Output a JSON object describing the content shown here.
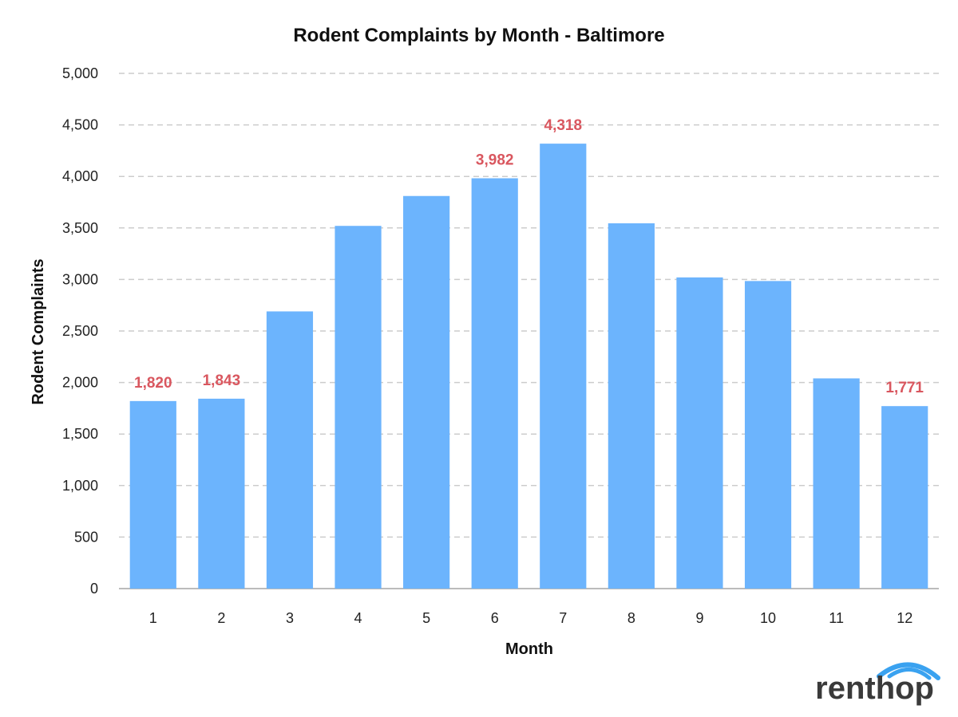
{
  "chart_data": {
    "type": "bar",
    "title": "Rodent Complaints by Month - Baltimore",
    "xlabel": "Month",
    "ylabel": "Rodent Complaints",
    "categories": [
      "1",
      "2",
      "3",
      "4",
      "5",
      "6",
      "7",
      "8",
      "9",
      "10",
      "11",
      "12"
    ],
    "values": [
      1820,
      1843,
      2690,
      3520,
      3810,
      3982,
      4318,
      3545,
      3020,
      2985,
      2040,
      1771
    ],
    "labeled_values": {
      "1": "1,820",
      "2": "1,843",
      "6": "3,982",
      "7": "4,318",
      "12": "1,771"
    },
    "ylim": [
      0,
      5000
    ],
    "yticks": [
      "0",
      "500",
      "1,000",
      "1,500",
      "2,000",
      "2,500",
      "3,000",
      "3,500",
      "4,000",
      "4,500",
      "5,000"
    ],
    "grid": true,
    "legend": "none"
  },
  "colors": {
    "bar": "#6cb4fd",
    "data_label": "#d9575f",
    "grid": "#cccccc",
    "baseline": "#bbbbbb",
    "logo_arc": "#3aa2f0"
  },
  "branding": {
    "logo_text": "renthop"
  }
}
